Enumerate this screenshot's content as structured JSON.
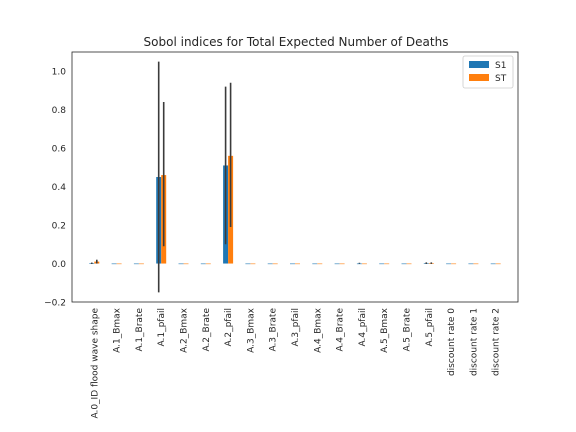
{
  "chart_data": {
    "type": "bar",
    "title": "Sobol indices for Total Expected Number of Deaths",
    "xlabel": "",
    "ylabel": "",
    "ylim": [
      -0.2,
      1.1
    ],
    "yticks": [
      -0.2,
      0.0,
      0.2,
      0.4,
      0.6,
      0.8,
      1.0
    ],
    "ytick_labels": [
      "−0.2",
      "0.0",
      "0.2",
      "0.4",
      "0.6",
      "0.8",
      "1.0"
    ],
    "grid": false,
    "legend_position": "top-right",
    "categories": [
      "A.0_ID flood wave shape",
      "A.1_Bmax",
      "A.1_Brate",
      "A.1_pfail",
      "A.2_Bmax",
      "A.2_Brate",
      "A.2_pfail",
      "A.3_Bmax",
      "A.3_Brate",
      "A.3_pfail",
      "A.4_Bmax",
      "A.4_Brate",
      "A.4_pfail",
      "A.5_Bmax",
      "A.5_Brate",
      "A.5_pfail",
      "discount rate 0",
      "discount rate 1",
      "discount rate 2"
    ],
    "series": [
      {
        "name": "S1",
        "color": "#1f77b4",
        "values": [
          0.002,
          0,
          0,
          0.45,
          0,
          0,
          0.51,
          0,
          0,
          0,
          0,
          0,
          0,
          0,
          0,
          0.002,
          0,
          0,
          0
        ],
        "err_low": [
          -0.002,
          0,
          0,
          -0.15,
          0,
          0,
          0.1,
          0,
          0,
          0,
          0,
          0,
          0.0,
          0,
          0,
          -0.002,
          0,
          0,
          0
        ],
        "err_high": [
          0.005,
          0,
          0,
          1.05,
          0,
          0,
          0.92,
          0,
          0,
          0,
          0,
          0,
          0.004,
          0,
          0,
          0.006,
          0,
          0,
          0
        ]
      },
      {
        "name": "ST",
        "color": "#ff7f0e",
        "values": [
          0.01,
          0,
          0,
          0.46,
          0,
          0,
          0.56,
          0,
          0,
          0,
          0,
          0,
          0,
          0,
          0,
          0.002,
          0,
          0,
          0
        ],
        "err_low": [
          0.0,
          0,
          0,
          0.09,
          0,
          0,
          0.19,
          0,
          0,
          0,
          0,
          0,
          0,
          0,
          0,
          -0.002,
          0,
          0,
          0
        ],
        "err_high": [
          0.02,
          0,
          0,
          0.84,
          0,
          0,
          0.94,
          0,
          0,
          0,
          0,
          0,
          0,
          0,
          0,
          0.006,
          0,
          0,
          0
        ]
      }
    ]
  }
}
